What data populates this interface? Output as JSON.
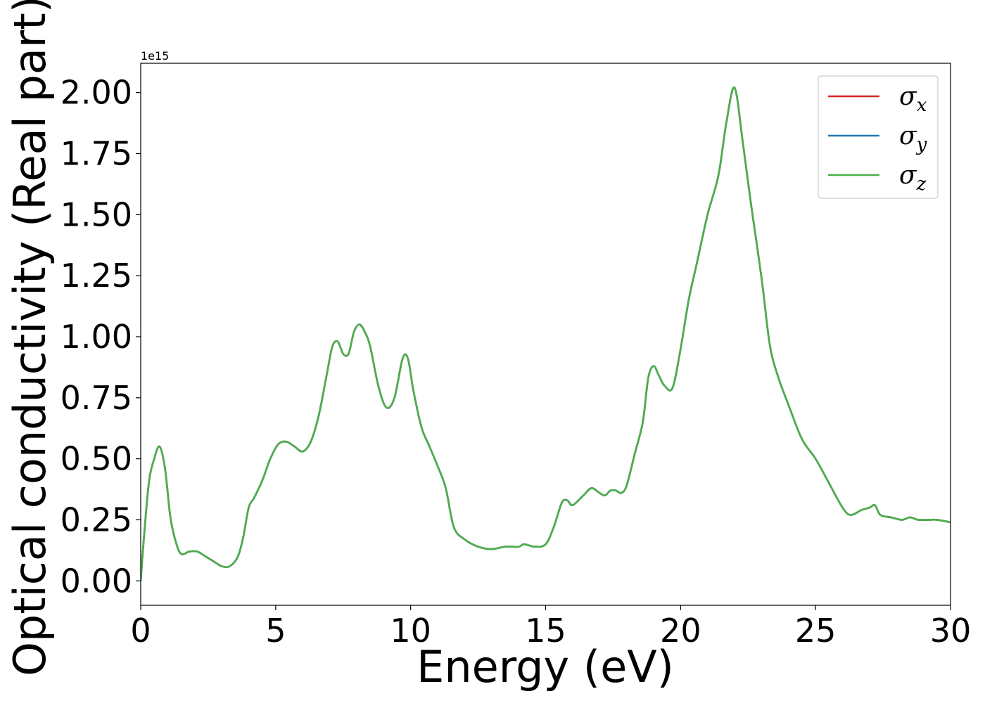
{
  "chart_data": {
    "type": "line",
    "title": "",
    "xlabel": "Energy (eV)",
    "ylabel": "Optical conductivity (Real part)",
    "y_offset_label": "1e15",
    "xlim": [
      0,
      30
    ],
    "ylim": [
      -0.1,
      2.12
    ],
    "xticks": [
      0,
      5,
      10,
      15,
      20,
      25,
      30
    ],
    "xtick_labels": [
      "0",
      "5",
      "10",
      "15",
      "20",
      "25",
      "30"
    ],
    "yticks": [
      0.0,
      0.25,
      0.5,
      0.75,
      1.0,
      1.25,
      1.5,
      1.75,
      2.0
    ],
    "ytick_labels": [
      "0.00",
      "0.25",
      "0.50",
      "0.75",
      "1.00",
      "1.25",
      "1.50",
      "1.75",
      "2.00"
    ],
    "grid": false,
    "legend_position": "top-right",
    "series": [
      {
        "name": "σ",
        "subscript": "x",
        "color": "#d62728"
      },
      {
        "name": "σ",
        "subscript": "y",
        "color": "#1f77b4"
      },
      {
        "name": "σ",
        "subscript": "z",
        "color": "#4daf4a"
      }
    ],
    "x": [
      0.0,
      0.1,
      0.3,
      0.5,
      0.7,
      0.9,
      1.1,
      1.3,
      1.5,
      1.8,
      2.1,
      2.4,
      2.7,
      3.0,
      3.3,
      3.6,
      3.8,
      4.0,
      4.2,
      4.5,
      4.8,
      5.1,
      5.4,
      5.7,
      6.0,
      6.3,
      6.6,
      6.9,
      7.1,
      7.3,
      7.5,
      7.7,
      7.9,
      8.1,
      8.3,
      8.5,
      8.8,
      9.1,
      9.4,
      9.7,
      9.9,
      10.1,
      10.4,
      10.7,
      11.0,
      11.3,
      11.6,
      12.0,
      12.5,
      13.0,
      13.5,
      14.0,
      14.2,
      14.6,
      15.0,
      15.3,
      15.6,
      15.8,
      16.0,
      16.4,
      16.7,
      17.0,
      17.2,
      17.4,
      17.6,
      17.8,
      18.0,
      18.3,
      18.6,
      18.8,
      19.0,
      19.2,
      19.4,
      19.7,
      20.0,
      20.3,
      20.6,
      21.0,
      21.4,
      21.7,
      22.0,
      22.3,
      22.6,
      23.0,
      23.3,
      23.6,
      24.0,
      24.5,
      25.0,
      25.5,
      26.0,
      26.3,
      26.7,
      27.0,
      27.2,
      27.4,
      27.8,
      28.2,
      28.5,
      28.8,
      29.2,
      29.5,
      30.0
    ],
    "values": [
      0.0,
      0.15,
      0.4,
      0.5,
      0.55,
      0.46,
      0.26,
      0.16,
      0.11,
      0.12,
      0.12,
      0.1,
      0.08,
      0.06,
      0.06,
      0.1,
      0.18,
      0.3,
      0.34,
      0.41,
      0.5,
      0.56,
      0.57,
      0.55,
      0.53,
      0.57,
      0.68,
      0.85,
      0.96,
      0.98,
      0.93,
      0.93,
      1.02,
      1.05,
      1.02,
      0.96,
      0.8,
      0.71,
      0.75,
      0.91,
      0.91,
      0.78,
      0.63,
      0.55,
      0.47,
      0.38,
      0.22,
      0.17,
      0.14,
      0.13,
      0.14,
      0.14,
      0.15,
      0.14,
      0.15,
      0.22,
      0.32,
      0.33,
      0.31,
      0.35,
      0.38,
      0.36,
      0.35,
      0.37,
      0.37,
      0.36,
      0.39,
      0.52,
      0.65,
      0.83,
      0.88,
      0.84,
      0.8,
      0.79,
      0.95,
      1.15,
      1.3,
      1.5,
      1.66,
      1.88,
      2.02,
      1.8,
      1.55,
      1.24,
      0.97,
      0.84,
      0.72,
      0.58,
      0.5,
      0.4,
      0.3,
      0.27,
      0.29,
      0.3,
      0.31,
      0.27,
      0.26,
      0.25,
      0.26,
      0.25,
      0.25,
      0.25,
      0.24
    ]
  }
}
